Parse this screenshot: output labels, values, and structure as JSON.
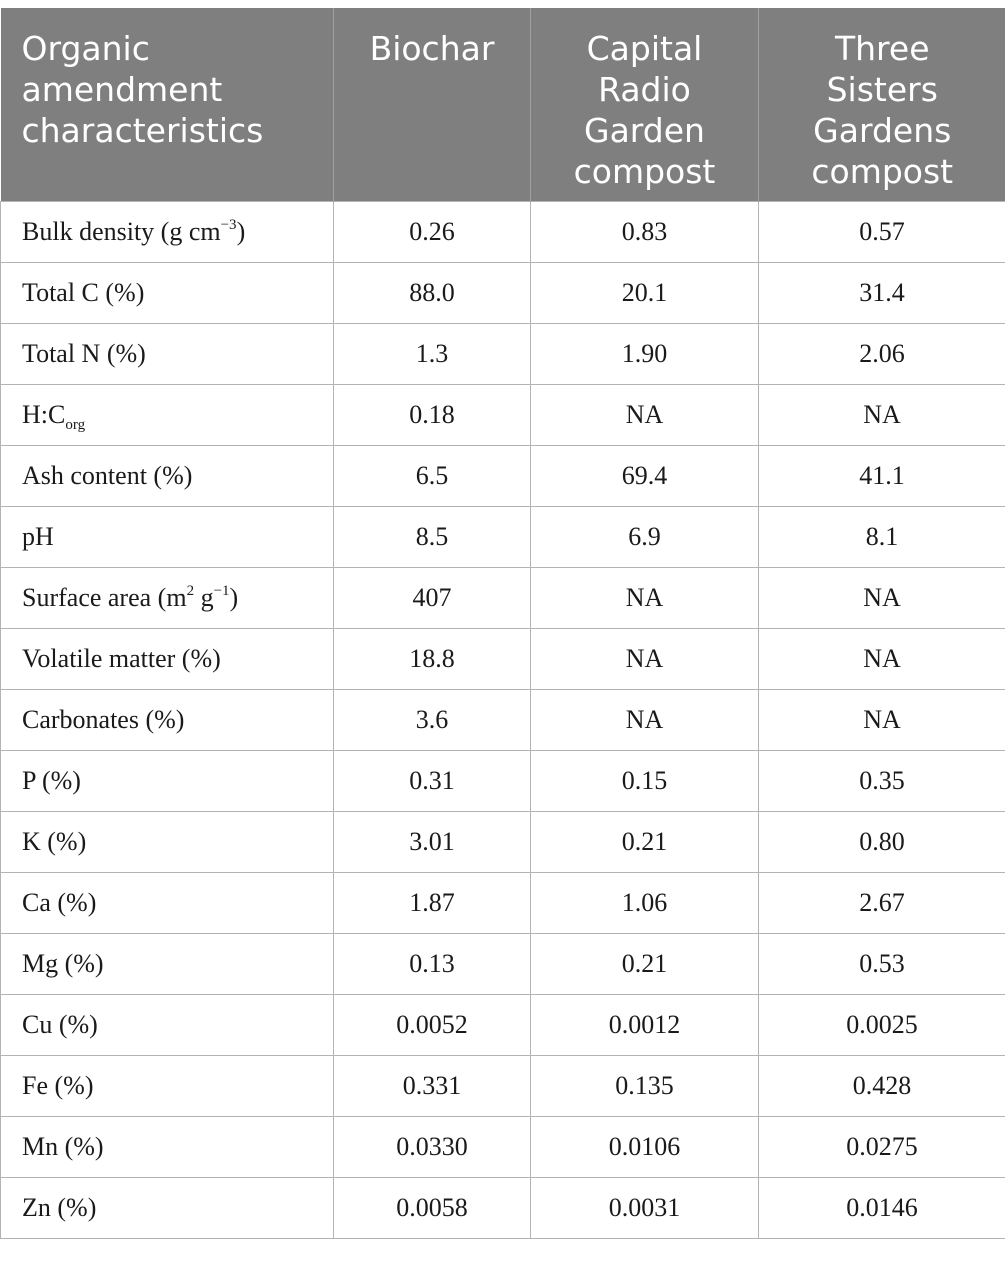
{
  "table": {
    "headers": [
      "Organic amendment characteristics",
      "Biochar",
      "Capital Radio Garden compost",
      "Three Sisters Gardens compost"
    ],
    "rows": [
      {
        "label": "Bulk density (g cm",
        "sup": "−3",
        "tail": ")",
        "values": [
          "0.26",
          "0.83",
          "0.57"
        ]
      },
      {
        "label": "Total C (%)",
        "values": [
          "88.0",
          "20.1",
          "31.4"
        ]
      },
      {
        "label": "Total N (%)",
        "values": [
          "1.3",
          "1.90",
          "2.06"
        ]
      },
      {
        "label": "H:C",
        "sub": "org",
        "values": [
          "0.18",
          "NA",
          "NA"
        ]
      },
      {
        "label": "Ash content (%)",
        "values": [
          "6.5",
          "69.4",
          "41.1"
        ]
      },
      {
        "label": "pH",
        "values": [
          "8.5",
          "6.9",
          "8.1"
        ]
      },
      {
        "label": "Surface area (m",
        "sup": "2",
        "mid": " g",
        "sup2": "−1",
        "tail": ")",
        "values": [
          "407",
          "NA",
          "NA"
        ]
      },
      {
        "label": "Volatile matter (%)",
        "values": [
          "18.8",
          "NA",
          "NA"
        ]
      },
      {
        "label": "Carbonates (%)",
        "values": [
          "3.6",
          "NA",
          "NA"
        ]
      },
      {
        "label": "P (%)",
        "values": [
          "0.31",
          "0.15",
          "0.35"
        ]
      },
      {
        "label": "K (%)",
        "values": [
          "3.01",
          "0.21",
          "0.80"
        ]
      },
      {
        "label": "Ca (%)",
        "values": [
          "1.87",
          "1.06",
          "2.67"
        ]
      },
      {
        "label": "Mg (%)",
        "values": [
          "0.13",
          "0.21",
          "0.53"
        ]
      },
      {
        "label": "Cu (%)",
        "values": [
          "0.0052",
          "0.0012",
          "0.0025"
        ]
      },
      {
        "label": "Fe (%)",
        "values": [
          "0.331",
          "0.135",
          "0.428"
        ]
      },
      {
        "label": "Mn (%)",
        "values": [
          "0.0330",
          "0.0106",
          "0.0275"
        ]
      },
      {
        "label": "Zn (%)",
        "values": [
          "0.0058",
          "0.0031",
          "0.0146"
        ]
      }
    ]
  },
  "colors": {
    "header_bg": "#7f7f7f",
    "header_text": "#ffffff",
    "grid": "#b3b3b3"
  }
}
